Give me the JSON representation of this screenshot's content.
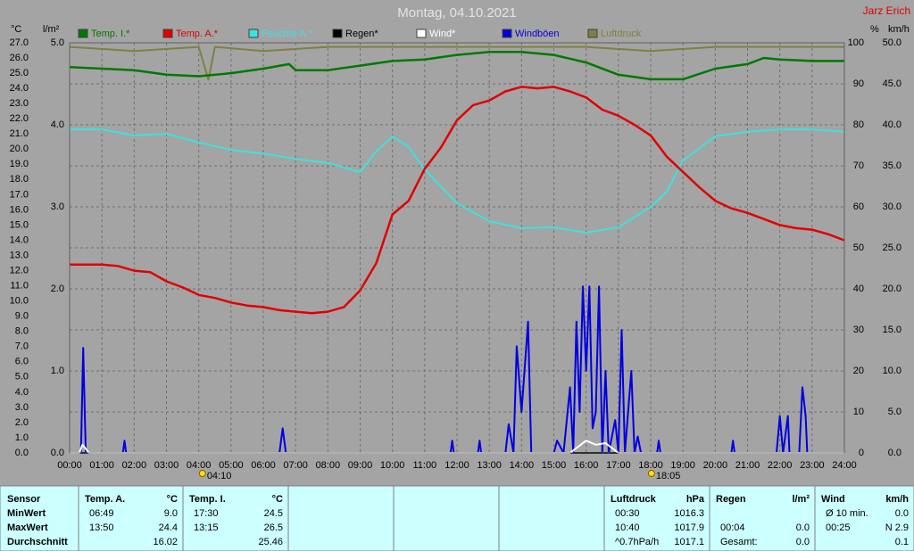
{
  "header": {
    "title": "Montag, 04.10.2021",
    "author": "Jarz Erich"
  },
  "chart_data": {
    "type": "line",
    "xlim": [
      0,
      24
    ],
    "xticks": [
      {
        "value": 0,
        "label": "00:00"
      },
      {
        "value": 1,
        "label": "01:00"
      },
      {
        "value": 2,
        "label": "02:00"
      },
      {
        "value": 3,
        "label": "03:00"
      },
      {
        "value": 4,
        "label": "04:00"
      },
      {
        "value": 5,
        "label": "05:00"
      },
      {
        "value": 6,
        "label": "06:00"
      },
      {
        "value": 7,
        "label": "07:00"
      },
      {
        "value": 8,
        "label": "08:00"
      },
      {
        "value": 9,
        "label": "09:00"
      },
      {
        "value": 10,
        "label": "10:00"
      },
      {
        "value": 11,
        "label": "11:00"
      },
      {
        "value": 12,
        "label": "12:00"
      },
      {
        "value": 13,
        "label": "13:00"
      },
      {
        "value": 14,
        "label": "14:00"
      },
      {
        "value": 15,
        "label": "15:00"
      },
      {
        "value": 16,
        "label": "16:00"
      },
      {
        "value": 17,
        "label": "17:00"
      },
      {
        "value": 18,
        "label": "18:00"
      },
      {
        "value": 19,
        "label": "19:00"
      },
      {
        "value": 20,
        "label": "20:00"
      },
      {
        "value": 21,
        "label": "21:00"
      },
      {
        "value": 22,
        "label": "22:00"
      },
      {
        "value": 23,
        "label": "23:00"
      },
      {
        "value": 24,
        "label": "24:00"
      }
    ],
    "grid": true,
    "axes": [
      {
        "label": "°C",
        "lim": [
          0,
          27
        ],
        "ticks": [
          {
            "value": 0,
            "label": "0.0"
          },
          {
            "value": 1,
            "label": "1.0"
          },
          {
            "value": 2,
            "label": "2.0"
          },
          {
            "value": 3,
            "label": "3.0"
          },
          {
            "value": 4,
            "label": "4.0"
          },
          {
            "value": 5,
            "label": "5.0"
          },
          {
            "value": 6,
            "label": "6.0"
          },
          {
            "value": 7,
            "label": "7.0"
          },
          {
            "value": 8,
            "label": "8.0"
          },
          {
            "value": 9,
            "label": "9.0"
          },
          {
            "value": 10,
            "label": "10.0"
          },
          {
            "value": 11,
            "label": "11.0"
          },
          {
            "value": 12,
            "label": "12.0"
          },
          {
            "value": 13,
            "label": "13.0"
          },
          {
            "value": 14,
            "label": "14.0"
          },
          {
            "value": 15,
            "label": "15.0"
          },
          {
            "value": 16,
            "label": "16.0"
          },
          {
            "value": 17,
            "label": "17.0"
          },
          {
            "value": 18,
            "label": "18.0"
          },
          {
            "value": 19,
            "label": "19.0"
          },
          {
            "value": 20,
            "label": "20.0"
          },
          {
            "value": 21,
            "label": "21.0"
          },
          {
            "value": 22,
            "label": "22.0"
          },
          {
            "value": 23,
            "label": "23.0"
          },
          {
            "value": 24,
            "label": "24.0"
          },
          {
            "value": 25,
            "label": "25.0"
          },
          {
            "value": 26,
            "label": "26.0"
          },
          {
            "value": 27,
            "label": "27.0"
          }
        ]
      },
      {
        "label": "l/m²",
        "lim": [
          0,
          5
        ],
        "ticks": [
          {
            "value": 0,
            "label": "0.0"
          },
          {
            "value": 1,
            "label": "1.0"
          },
          {
            "value": 2,
            "label": "2.0"
          },
          {
            "value": 3,
            "label": "3.0"
          },
          {
            "value": 4,
            "label": "4.0"
          },
          {
            "value": 5,
            "label": "5.0"
          }
        ]
      },
      {
        "label": "%",
        "lim": [
          0,
          100
        ],
        "grid": true,
        "ticks": [
          0,
          10,
          20,
          30,
          40,
          50,
          60,
          70,
          80,
          90,
          100
        ]
      },
      {
        "label": "km/h",
        "lim": [
          0,
          50
        ],
        "ticks": [
          {
            "value": 0,
            "label": "0.0"
          },
          {
            "value": 5,
            "label": "5.0"
          },
          {
            "value": 10,
            "label": "10.0"
          },
          {
            "value": 15,
            "label": "15.0"
          },
          {
            "value": 20,
            "label": "20.0"
          },
          {
            "value": 25,
            "label": "25.0"
          },
          {
            "value": 30,
            "label": "30.0"
          },
          {
            "value": 35,
            "label": "35.0"
          },
          {
            "value": 40,
            "label": "40.0"
          },
          {
            "value": 45,
            "label": "45.0"
          },
          {
            "value": 50,
            "label": "50.0"
          }
        ]
      }
    ],
    "series": [
      {
        "name": "Temp. I.*",
        "color": "#007800",
        "axis": 0,
        "x": [
          0,
          1,
          2,
          3,
          4,
          5,
          6,
          6.8,
          7,
          8,
          9,
          10,
          11,
          12,
          13,
          14,
          15,
          16,
          17,
          18,
          19,
          20,
          21,
          21.5,
          22,
          23,
          24
        ],
        "values": [
          25.4,
          25.3,
          25.2,
          24.9,
          24.8,
          25.0,
          25.3,
          25.6,
          25.2,
          25.2,
          25.5,
          25.8,
          25.9,
          26.2,
          26.4,
          26.4,
          26.2,
          25.7,
          24.9,
          24.6,
          24.6,
          25.3,
          25.6,
          26.0,
          25.9,
          25.8,
          25.8
        ]
      },
      {
        "name": "Temp. A.*",
        "color": "#e00000",
        "axis": 0,
        "x": [
          0,
          1,
          1.5,
          2,
          2.5,
          3,
          3.5,
          4,
          4.5,
          5,
          5.5,
          6,
          6.5,
          7,
          7.5,
          8,
          8.5,
          9,
          9.5,
          10,
          10.5,
          11,
          11.5,
          12,
          12.5,
          13,
          13.5,
          14,
          14.5,
          15,
          15.5,
          16,
          16.5,
          17,
          17.5,
          18,
          18.5,
          19,
          19.5,
          20,
          20.5,
          21,
          21.5,
          22,
          22.5,
          23,
          23.5,
          24
        ],
        "values": [
          12.4,
          12.4,
          12.3,
          12.0,
          11.9,
          11.3,
          10.9,
          10.4,
          10.2,
          9.9,
          9.7,
          9.6,
          9.4,
          9.3,
          9.2,
          9.3,
          9.6,
          10.7,
          12.5,
          15.7,
          16.6,
          18.7,
          20.1,
          21.9,
          22.9,
          23.2,
          23.8,
          24.1,
          24.0,
          24.1,
          23.8,
          23.4,
          22.6,
          22.2,
          21.6,
          20.9,
          19.5,
          18.5,
          17.5,
          16.6,
          16.1,
          15.8,
          15.4,
          15.0,
          14.8,
          14.7,
          14.4,
          14.0
        ]
      },
      {
        "name": "Feuchte A.*",
        "color": "#40e0e0",
        "axis": 2,
        "x": [
          0,
          1,
          2,
          3,
          4,
          5,
          6,
          7,
          8,
          9,
          9.5,
          10,
          10.5,
          11,
          12,
          13,
          14,
          15,
          16,
          17,
          18,
          18.5,
          19,
          20,
          21,
          22,
          23,
          24
        ],
        "values": [
          78.9,
          78.9,
          77.4,
          77.8,
          75.7,
          73.9,
          73.0,
          71.7,
          70.7,
          68.5,
          73.5,
          77.2,
          74.6,
          69.1,
          60.9,
          56.5,
          54.8,
          55.0,
          53.7,
          55.0,
          60.0,
          63.7,
          71.3,
          77.2,
          78.3,
          78.9,
          78.9,
          78.3
        ]
      },
      {
        "name": "Regen*",
        "color": "#000000",
        "axis": 1,
        "x": [
          0,
          24
        ],
        "values": [
          0,
          0
        ]
      },
      {
        "name": "Wind*",
        "color": "#ffffff",
        "axis": 3,
        "x": [
          0,
          0.3,
          0.4,
          0.6,
          15.5,
          16.0,
          16.3,
          16.6,
          17.0,
          24
        ],
        "values": [
          0,
          0,
          1,
          0,
          0,
          1.5,
          1,
          1.2,
          0,
          0
        ]
      },
      {
        "name": "Windböen",
        "color": "#0000e0",
        "axis": 3,
        "x": [
          0,
          0.35,
          0.42,
          0.5,
          1.65,
          1.7,
          1.75,
          6.5,
          6.6,
          6.7,
          11.8,
          11.85,
          11.9,
          12.65,
          12.7,
          12.75,
          13.5,
          13.6,
          13.75,
          13.85,
          14.0,
          14.2,
          14.3,
          15,
          15.1,
          15.3,
          15.5,
          15.6,
          15.7,
          15.8,
          15.9,
          16.0,
          16.1,
          16.2,
          16.3,
          16.4,
          16.5,
          16.6,
          16.7,
          16.9,
          17.0,
          17.1,
          17.2,
          17.4,
          17.5,
          17.6,
          17.7,
          18.2,
          18.25,
          18.3,
          20.5,
          20.55,
          20.6,
          21.9,
          22.0,
          22.1,
          22.25,
          22.3,
          22.6,
          22.7,
          22.8,
          22.85,
          24
        ],
        "values": [
          0,
          0,
          12.8,
          0,
          0,
          1.5,
          0,
          0,
          3,
          0,
          0,
          1.5,
          0,
          0,
          1.5,
          0,
          0,
          3.5,
          0,
          13,
          5,
          16,
          0,
          0,
          1.5,
          0,
          8,
          0,
          16,
          5,
          20.3,
          10,
          20.3,
          3,
          5,
          20.3,
          0,
          10,
          0,
          4,
          0,
          15,
          0,
          10,
          0,
          2,
          0,
          0,
          1.5,
          0,
          0,
          1.5,
          0,
          0,
          4.5,
          0,
          4.5,
          0,
          0,
          8,
          4.5,
          0,
          0
        ]
      },
      {
        "name": "Luftdruck",
        "color": "#808040",
        "axis": 2,
        "x": [
          0,
          2,
          4,
          4.3,
          4.5,
          6,
          8,
          10,
          12,
          14,
          16,
          18,
          20,
          22,
          24
        ],
        "values": [
          99,
          98,
          99,
          91,
          99,
          98,
          99,
          99,
          99,
          99,
          99,
          98,
          99,
          99,
          99
        ]
      }
    ],
    "annotations": [
      {
        "text": "04:10",
        "x": 4.17
      },
      {
        "text": "18:05",
        "x": 18.08
      }
    ]
  },
  "table": {
    "row_labels": [
      "Sensor",
      "MinWert",
      "MaxWert",
      "Durchschnitt"
    ],
    "columns": [
      {
        "title": "Temp. A.",
        "unit": "°C",
        "cells": [
          [
            "06:49",
            "9.0"
          ],
          [
            "13:50",
            "24.4"
          ],
          [
            "16.02"
          ]
        ]
      },
      {
        "title": "Temp. I.",
        "unit": "°C",
        "cells": [
          [
            "17:30",
            "24.5"
          ],
          [
            "13:15",
            "26.5"
          ],
          [
            "25.46"
          ]
        ]
      },
      {
        "title": "Luftdruck",
        "unit": "hPa",
        "cells": [
          [
            "00:30",
            "1016.3"
          ],
          [
            "10:40",
            "1017.9"
          ],
          [
            "^0.7hPa/h",
            "1017.1"
          ]
        ]
      },
      {
        "title": "Regen",
        "unit": "l/m²",
        "cells": [
          null,
          [
            "00:04",
            "0.0"
          ],
          [
            "Gesamt:",
            "0.0"
          ]
        ]
      },
      {
        "title": "Wind",
        "unit": "km/h",
        "cells": [
          [
            "Ø 10 min.",
            "0.0"
          ],
          [
            "00:25",
            "N 2.9"
          ],
          [
            "0.1"
          ]
        ]
      }
    ]
  }
}
